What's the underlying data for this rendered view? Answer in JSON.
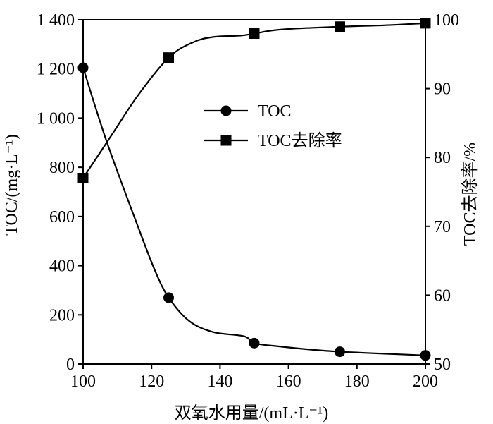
{
  "chart_data": {
    "type": "line",
    "title": "",
    "xlabel": "双氧水用量/(mL·L⁻¹)",
    "ylabel_left": "TOC/(mg·L⁻¹)",
    "ylabel_right": "TOC去除率/%",
    "xlim": [
      100,
      200
    ],
    "ylim_left": [
      0,
      1400
    ],
    "ylim_right": [
      50,
      100
    ],
    "x_ticks": [
      "100",
      "120",
      "140",
      "160",
      "180",
      "200"
    ],
    "y_left_ticks": [
      "0",
      "200",
      "400",
      "600",
      "800",
      "1 000",
      "1 200",
      "1 400"
    ],
    "y_right_ticks": [
      "50",
      "60",
      "70",
      "80",
      "90",
      "100"
    ],
    "grid": false,
    "legend_position": "center",
    "series": [
      {
        "name": "TOC",
        "axis": "left",
        "marker": "circle",
        "x": [
          100,
          125,
          150,
          175,
          200
        ],
        "values": [
          1205,
          270,
          85,
          50,
          35
        ],
        "curve": [
          [
            100,
            1205
          ],
          [
            107,
            900
          ],
          [
            116,
            560
          ],
          [
            121,
            380
          ],
          [
            125,
            270
          ],
          [
            131,
            175
          ],
          [
            138,
            130
          ],
          [
            147,
            113
          ],
          [
            150,
            85
          ],
          [
            157,
            72
          ],
          [
            167,
            58
          ],
          [
            175,
            50
          ],
          [
            188,
            42
          ],
          [
            200,
            35
          ]
        ]
      },
      {
        "name": "TOC去除率",
        "axis": "right",
        "marker": "square",
        "x": [
          100,
          125,
          150,
          175,
          200
        ],
        "values": [
          77,
          94.5,
          98,
          99,
          99.5
        ],
        "curve": [
          [
            100,
            77
          ],
          [
            108,
            83
          ],
          [
            116,
            89
          ],
          [
            125,
            94.5
          ],
          [
            132,
            96.7
          ],
          [
            138,
            97.5
          ],
          [
            146,
            97.7
          ],
          [
            150,
            98
          ],
          [
            158,
            98.6
          ],
          [
            175,
            99
          ],
          [
            188,
            99.2
          ],
          [
            200,
            99.5
          ]
        ]
      }
    ]
  }
}
